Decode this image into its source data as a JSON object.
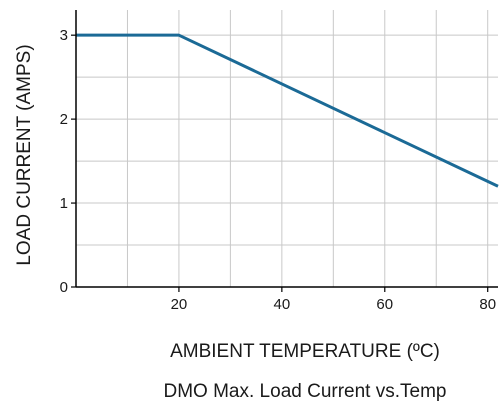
{
  "chart_data": {
    "type": "line",
    "title": "DMO Max. Load Current vs.Temp",
    "xlabel": "AMBIENT TEMPERATURE (ºC)",
    "ylabel": "LOAD CURRENT (AMPS)",
    "xlim": [
      0,
      82
    ],
    "ylim": [
      0,
      3.3
    ],
    "x_ticks": [
      20,
      40,
      60,
      80
    ],
    "x_tick_labels": [
      "20",
      "40",
      "60",
      "80"
    ],
    "y_ticks": [
      0,
      1,
      2,
      3
    ],
    "y_tick_labels": [
      "0",
      "1",
      "2",
      "3"
    ],
    "x_gridlines": [
      10,
      20,
      30,
      40,
      50,
      60,
      70,
      80
    ],
    "y_gridlines": [
      0.5,
      1,
      1.5,
      2,
      2.5,
      3
    ],
    "grid": true,
    "series": [
      {
        "x": [
          0,
          20,
          82
        ],
        "y": [
          3,
          3,
          1.2
        ],
        "color": "#1b6a96"
      }
    ],
    "colors": {
      "grid": "#c8c8c8",
      "axis": "#000000",
      "line": "#1b6a96"
    }
  }
}
